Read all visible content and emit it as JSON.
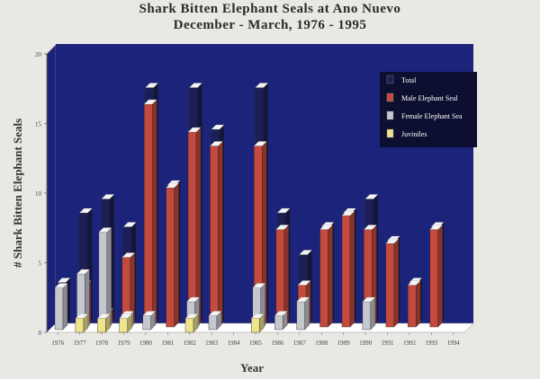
{
  "header": {
    "title_line1": "Shark Bitten Elephant Seals at Ano Nuevo",
    "title_line2": "December - March, 1976 - 1995"
  },
  "axes": {
    "ylabel": "# Shark Bitten Elephant Seals",
    "xlabel": "Year"
  },
  "colors": {
    "background": "#1c237a",
    "total": "#1b1f55",
    "male": "#c34a3d",
    "female": "#c6c8cf",
    "juvenile": "#efe48a",
    "legend_bg": "#0c0f30"
  },
  "chart_data": {
    "type": "bar",
    "title": "Shark Bitten Elephant Seals at Ano Nuevo",
    "subtitle": "December - March, 1976 - 1995",
    "xlabel": "Year",
    "ylabel": "# Shark Bitten Elephant Seals",
    "ylim": [
      0,
      20
    ],
    "yticks": [
      "0",
      "5",
      "10",
      "15",
      "20"
    ],
    "categories": [
      "1976",
      "1977",
      "1978",
      "1979",
      "1980",
      "1981",
      "1982",
      "1983",
      "1984",
      "1985",
      "1986",
      "1987",
      "1988",
      "1989",
      "1990",
      "1991",
      "1992",
      "1993",
      "1994"
    ],
    "series": [
      {
        "name": "Total",
        "values": [
          3,
          8,
          9,
          7,
          17,
          10,
          17,
          14,
          0,
          17,
          8,
          5,
          7,
          8,
          9,
          6,
          3,
          7,
          0
        ]
      },
      {
        "name": "Male Elephant Seal",
        "values": [
          0,
          3,
          1,
          5,
          16,
          10,
          14,
          13,
          0,
          13,
          7,
          3,
          7,
          8,
          7,
          6,
          3,
          7,
          0
        ]
      },
      {
        "name": "Female Elephant Seal",
        "values": [
          3,
          4,
          7,
          1,
          1,
          0,
          2,
          1,
          0,
          3,
          1,
          2,
          0,
          0,
          2,
          0,
          0,
          0,
          0
        ]
      },
      {
        "name": "Juviniles",
        "values": [
          0,
          1,
          1,
          1,
          0,
          0,
          1,
          0,
          0,
          1,
          0,
          0,
          0,
          0,
          0,
          0,
          0,
          0,
          0
        ]
      }
    ],
    "legend": {
      "placement": "top-right",
      "entries": [
        "Total",
        "Male Elephant Seal",
        "Female Elephant Sea",
        "Juviniles"
      ]
    },
    "grid": false
  }
}
